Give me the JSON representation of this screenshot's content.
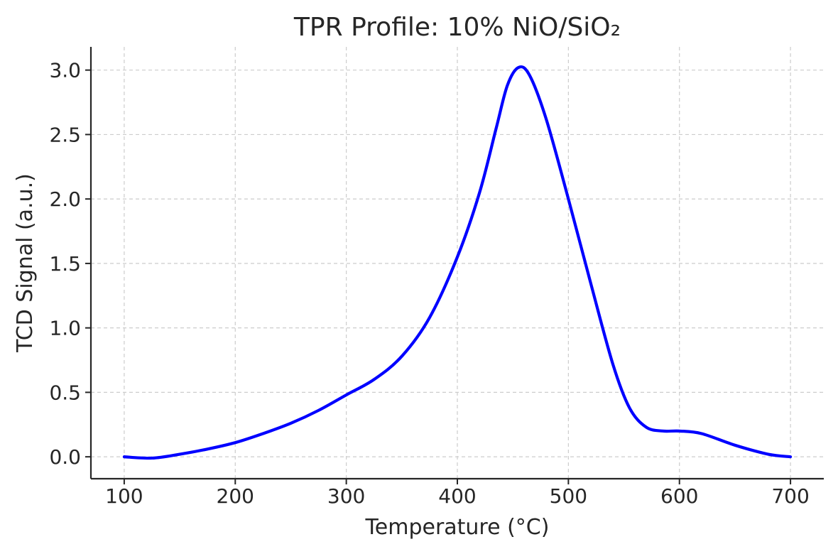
{
  "chart_data": {
    "type": "line",
    "title": "TPR Profile: 10% NiO/SiO₂",
    "xlabel": "Temperature (°C)",
    "ylabel": "TCD Signal (a.u.)",
    "xlim": [
      70,
      730
    ],
    "ylim": [
      -0.17,
      3.18
    ],
    "xticks": [
      100,
      200,
      300,
      400,
      500,
      600,
      700
    ],
    "xtick_labels": [
      "100",
      "200",
      "300",
      "400",
      "500",
      "600",
      "700"
    ],
    "yticks": [
      0.0,
      0.5,
      1.0,
      1.5,
      2.0,
      2.5,
      3.0
    ],
    "ytick_labels": [
      "0.0",
      "0.5",
      "1.0",
      "1.5",
      "2.0",
      "2.5",
      "3.0"
    ],
    "grid": true,
    "series": [
      {
        "color": "#0000ff",
        "x": [
          100,
          125,
          150,
          175,
          200,
          225,
          250,
          275,
          300,
          325,
          350,
          375,
          400,
          420,
          435,
          445,
          455,
          465,
          480,
          500,
          520,
          540,
          555,
          570,
          585,
          600,
          620,
          650,
          680,
          700
        ],
        "y": [
          0.0,
          -0.01,
          0.02,
          0.06,
          0.11,
          0.18,
          0.26,
          0.36,
          0.48,
          0.6,
          0.78,
          1.08,
          1.55,
          2.05,
          2.55,
          2.88,
          3.02,
          2.96,
          2.62,
          2.0,
          1.35,
          0.72,
          0.38,
          0.23,
          0.2,
          0.2,
          0.18,
          0.09,
          0.02,
          0.0
        ]
      }
    ]
  }
}
